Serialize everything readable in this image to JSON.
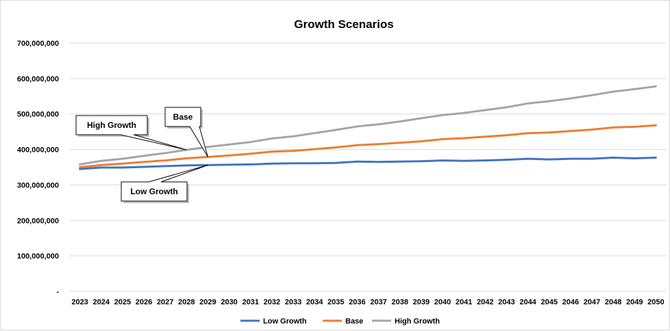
{
  "chart_data": {
    "type": "line",
    "title": "Growth Scenarios",
    "xlabel": "",
    "ylabel": "",
    "x": [
      "2023",
      "2024",
      "2025",
      "2026",
      "2027",
      "2028",
      "2029",
      "2030",
      "2031",
      "2032",
      "2033",
      "2034",
      "2035",
      "2036",
      "2037",
      "2038",
      "2039",
      "2040",
      "2041",
      "2042",
      "2043",
      "2044",
      "2045",
      "2046",
      "2047",
      "2048",
      "2049",
      "2050"
    ],
    "ylim": [
      0,
      700000000
    ],
    "yticks": [
      0,
      100000000,
      200000000,
      300000000,
      400000000,
      500000000,
      600000000,
      700000000
    ],
    "ytick_labels": [
      "-",
      "100,000,000",
      "200,000,000",
      "300,000,000",
      "400,000,000",
      "500,000,000",
      "600,000,000",
      "700,000,000"
    ],
    "grid": true,
    "legend_position": "bottom",
    "series": [
      {
        "name": "Low Growth",
        "color": "#4472C4",
        "values": [
          345000000,
          349000000,
          349000000,
          351000000,
          353000000,
          355000000,
          356000000,
          357000000,
          358000000,
          360000000,
          361000000,
          361000000,
          362000000,
          366000000,
          365000000,
          366000000,
          367000000,
          369000000,
          368000000,
          369000000,
          371000000,
          374000000,
          372000000,
          374000000,
          374000000,
          377000000,
          375000000,
          377000000
        ]
      },
      {
        "name": "Base",
        "color": "#ED7D31",
        "values": [
          350000000,
          356000000,
          360000000,
          365000000,
          369000000,
          375000000,
          379000000,
          383000000,
          388000000,
          394000000,
          396000000,
          401000000,
          406000000,
          412000000,
          415000000,
          419000000,
          423000000,
          429000000,
          432000000,
          436000000,
          440000000,
          446000000,
          448000000,
          452000000,
          456000000,
          462000000,
          464000000,
          468000000
        ]
      },
      {
        "name": "High Growth",
        "color": "#A5A5A5",
        "values": [
          358000000,
          368000000,
          374000000,
          382000000,
          390000000,
          399000000,
          407000000,
          414000000,
          421000000,
          431000000,
          437000000,
          446000000,
          455000000,
          465000000,
          471000000,
          479000000,
          488000000,
          497000000,
          503000000,
          511000000,
          519000000,
          530000000,
          536000000,
          544000000,
          553000000,
          563000000,
          570000000,
          578000000
        ]
      }
    ],
    "annotations": [
      {
        "text": "High Growth",
        "series": "High Growth",
        "x": "2028"
      },
      {
        "text": "Base",
        "series": "Base",
        "x": "2029"
      },
      {
        "text": "Low Growth",
        "series": "Low Growth",
        "x": "2029"
      }
    ]
  }
}
